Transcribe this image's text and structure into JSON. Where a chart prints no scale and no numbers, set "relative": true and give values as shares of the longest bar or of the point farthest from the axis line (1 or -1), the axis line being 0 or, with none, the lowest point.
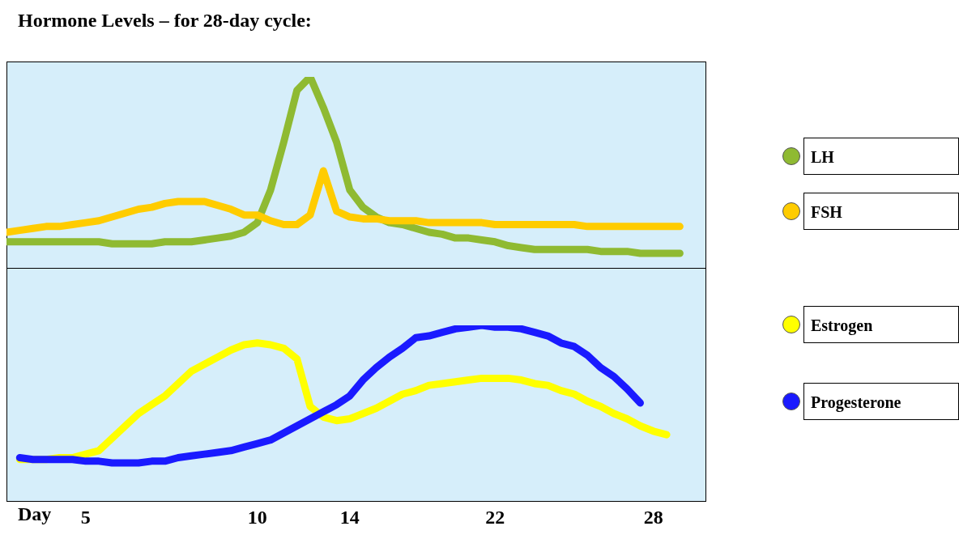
{
  "chart_data": [
    {
      "type": "line",
      "title": "Hormone Levels – for 28-day cycle:",
      "relative": true,
      "tick_labels": false,
      "legend": "right",
      "categories": [
        null,
        null,
        null,
        null,
        null,
        null,
        "5",
        null,
        null,
        null,
        null,
        null,
        null,
        null,
        null,
        null,
        null,
        null,
        null,
        "10",
        null,
        null,
        null,
        null,
        null,
        null,
        "14",
        null,
        null,
        null,
        null,
        null,
        null,
        null,
        null,
        null,
        null,
        "22",
        null,
        null,
        null,
        null,
        null,
        null,
        null,
        null,
        null,
        null,
        null,
        "28",
        null,
        null,
        null,
        null
      ],
      "series": [
        {
          "name": "LH",
          "color": "#8fba32",
          "values": [
            0.14,
            0.14,
            0.14,
            0.14,
            0.14,
            0.14,
            0.14,
            0.14,
            0.13,
            0.13,
            0.13,
            0.13,
            0.14,
            0.14,
            0.14,
            0.15,
            0.16,
            0.17,
            0.19,
            0.24,
            0.41,
            0.66,
            0.93,
            1,
            0.84,
            0.66,
            0.41,
            0.32,
            0.27,
            0.24,
            0.23,
            0.21,
            0.19,
            0.18,
            0.16,
            0.16,
            0.15,
            0.14,
            0.12,
            0.11,
            0.1,
            0.1,
            0.1,
            0.1,
            0.1,
            0.09,
            0.09,
            0.09,
            0.08,
            0.08,
            0.08,
            0.08,
            null,
            null
          ]
        },
        {
          "name": "FSH",
          "color": "#ffcc00",
          "values": [
            0.19,
            0.2,
            0.21,
            0.22,
            0.22,
            0.23,
            0.24,
            0.25,
            0.27,
            0.29,
            0.31,
            0.32,
            0.34,
            0.35,
            0.35,
            0.35,
            0.33,
            0.31,
            0.28,
            0.28,
            0.25,
            0.23,
            0.23,
            0.28,
            0.51,
            0.3,
            0.27,
            0.26,
            0.26,
            0.25,
            0.25,
            0.25,
            0.24,
            0.24,
            0.24,
            0.24,
            0.24,
            0.23,
            0.23,
            0.23,
            0.23,
            0.23,
            0.23,
            0.23,
            0.22,
            0.22,
            0.22,
            0.22,
            0.22,
            0.22,
            0.22,
            0.22,
            null,
            null
          ]
        }
      ]
    },
    {
      "type": "line",
      "xlabel": "Day",
      "relative": true,
      "tick_labels": "x",
      "legend": "right",
      "categories": [
        null,
        null,
        null,
        null,
        null,
        null,
        "5",
        null,
        null,
        null,
        null,
        null,
        null,
        null,
        null,
        null,
        null,
        null,
        null,
        "10",
        null,
        null,
        null,
        null,
        null,
        null,
        "14",
        null,
        null,
        null,
        null,
        null,
        null,
        null,
        null,
        null,
        null,
        "22",
        null,
        null,
        null,
        null,
        null,
        null,
        null,
        null,
        null,
        null,
        null,
        "28",
        null,
        null,
        null,
        null
      ],
      "series": [
        {
          "name": "Estrogen",
          "color": "#ffff00",
          "values": [
            null,
            0.24,
            0.24,
            0.24,
            0.25,
            0.25,
            0.27,
            0.29,
            0.36,
            0.43,
            0.5,
            0.55,
            0.6,
            0.67,
            0.74,
            0.78,
            0.82,
            0.86,
            0.89,
            0.9,
            0.89,
            0.87,
            0.81,
            0.54,
            0.48,
            0.46,
            0.47,
            0.5,
            0.53,
            0.57,
            0.61,
            0.63,
            0.66,
            0.67,
            0.68,
            0.69,
            0.7,
            0.7,
            0.7,
            0.69,
            0.67,
            0.66,
            0.63,
            0.61,
            0.57,
            0.54,
            0.5,
            0.47,
            0.43,
            0.4,
            0.38,
            null,
            null,
            null
          ]
        },
        {
          "name": "Progesterone",
          "color": "#1a1aff",
          "values": [
            null,
            0.25,
            0.24,
            0.24,
            0.24,
            0.24,
            0.23,
            0.23,
            0.22,
            0.22,
            0.22,
            0.23,
            0.23,
            0.25,
            0.26,
            0.27,
            0.28,
            0.29,
            0.31,
            0.33,
            0.35,
            0.39,
            0.43,
            0.47,
            0.51,
            0.55,
            0.6,
            0.69,
            0.76,
            0.82,
            0.87,
            0.93,
            0.94,
            0.96,
            0.98,
            0.99,
            1,
            0.99,
            0.99,
            0.98,
            0.96,
            0.94,
            0.9,
            0.88,
            0.83,
            0.76,
            0.71,
            0.64,
            0.56,
            null,
            null,
            null,
            null,
            null
          ]
        }
      ]
    }
  ]
}
